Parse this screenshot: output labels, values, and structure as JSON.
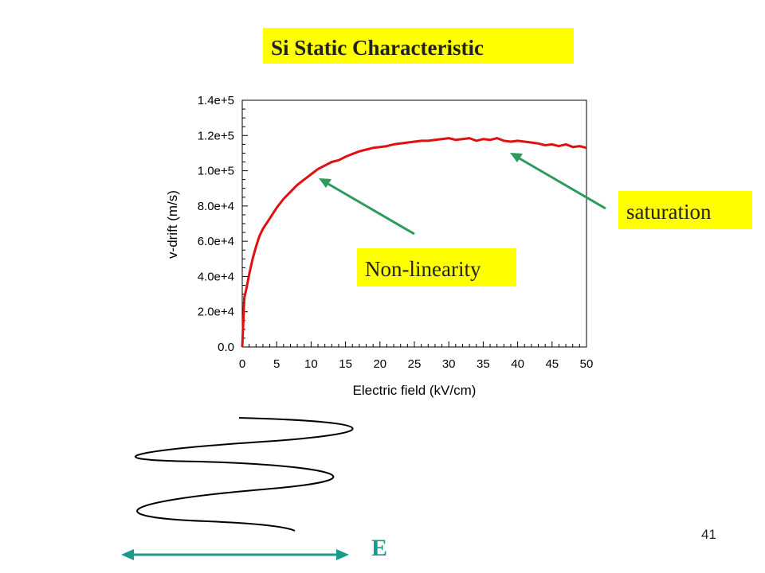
{
  "slide": {
    "title": "Si Static Characteristic",
    "page_number": "41",
    "field_symbol": "E"
  },
  "annotations": {
    "saturation": "saturation",
    "non_linearity": "Non-linearity",
    "box_color": "#ffff00",
    "arrow_color": "#2e9a5e"
  },
  "chart_data": {
    "type": "line",
    "xlabel": "Electric field (kV/cm)",
    "ylabel": "v-drift (m/s)",
    "xlim": [
      0,
      50
    ],
    "ylim": [
      0,
      140000
    ],
    "xticks": [
      "0",
      "5",
      "10",
      "15",
      "20",
      "25",
      "30",
      "35",
      "40",
      "45",
      "50"
    ],
    "yticks": [
      "0.0",
      "2.0e+4",
      "4.0e+4",
      "6.0e+4",
      "8.0e+4",
      "1.0e+5",
      "1.2e+5",
      "1.4e+5"
    ],
    "grid": false,
    "series": [
      {
        "color": "#e01010",
        "x": [
          0,
          0.3,
          0.6,
          1,
          1.5,
          2,
          2.5,
          3,
          4,
          5,
          6,
          7,
          8,
          9,
          10,
          11,
          12,
          13,
          14,
          15,
          16,
          17,
          18,
          19,
          20,
          21,
          22,
          23,
          24,
          25,
          26,
          27,
          28,
          29,
          30,
          31,
          32,
          33,
          34,
          35,
          36,
          37,
          38,
          39,
          40,
          41,
          42,
          43,
          44,
          45,
          46,
          47,
          48,
          49,
          50
        ],
        "y": [
          0,
          28000,
          33000,
          41000,
          50000,
          57000,
          63000,
          67000,
          73000,
          79000,
          84000,
          88000,
          92000,
          95000,
          98000,
          101000,
          103000,
          105000,
          106000,
          108000,
          109500,
          111000,
          112000,
          113000,
          113500,
          114000,
          115000,
          115500,
          116000,
          116500,
          117000,
          117000,
          117500,
          118000,
          118500,
          117500,
          118000,
          118500,
          117000,
          118000,
          117500,
          118500,
          117000,
          116500,
          117000,
          116500,
          116000,
          115500,
          114500,
          115000,
          114000,
          115000,
          113500,
          114000,
          113000
        ]
      }
    ]
  }
}
